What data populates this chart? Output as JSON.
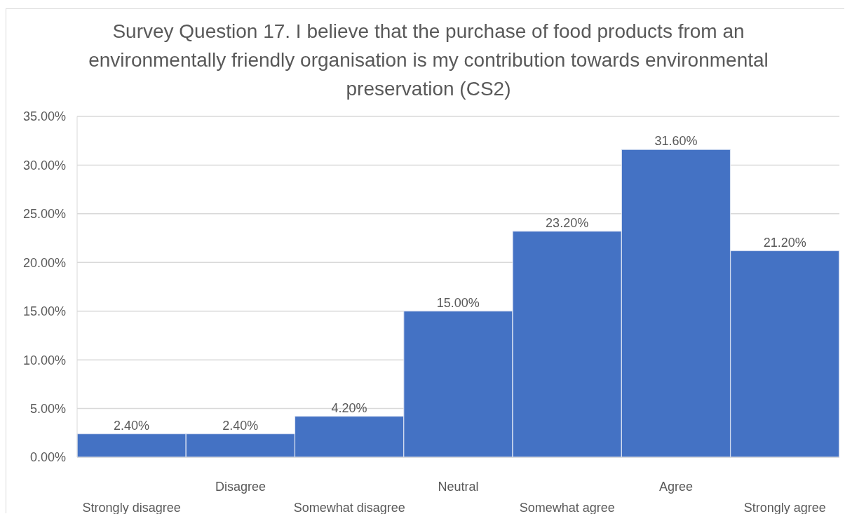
{
  "chart_data": {
    "type": "bar",
    "title": "Survey Question 17. I believe that the purchase of food products from an environmentally friendly organisation is my contribution towards environmental preservation (CS2)",
    "categories": [
      "Strongly disagree",
      "Disagree",
      "Somewhat disagree",
      "Neutral",
      "Somewhat agree",
      "Agree",
      "Strongly agree"
    ],
    "values": [
      2.4,
      2.4,
      4.2,
      15,
      23.2,
      31.6,
      21.2
    ],
    "value_labels": [
      "2.40%",
      "2.40%",
      "4.20%",
      "15.00%",
      "23.20%",
      "31.60%",
      "21.20%"
    ],
    "color": "#4472c4",
    "ylim": [
      0,
      35
    ],
    "yticks": [
      {
        "value": 0,
        "label": "0.00%"
      },
      {
        "value": 5,
        "label": "5.00%"
      },
      {
        "value": 10,
        "label": "10.00%"
      },
      {
        "value": 15,
        "label": "15.00%"
      },
      {
        "value": 20,
        "label": "20.00%"
      },
      {
        "value": 25,
        "label": "25.00%"
      },
      {
        "value": 30,
        "label": "30.00%"
      },
      {
        "value": 35,
        "label": "35.00%"
      }
    ],
    "grid": "y"
  }
}
